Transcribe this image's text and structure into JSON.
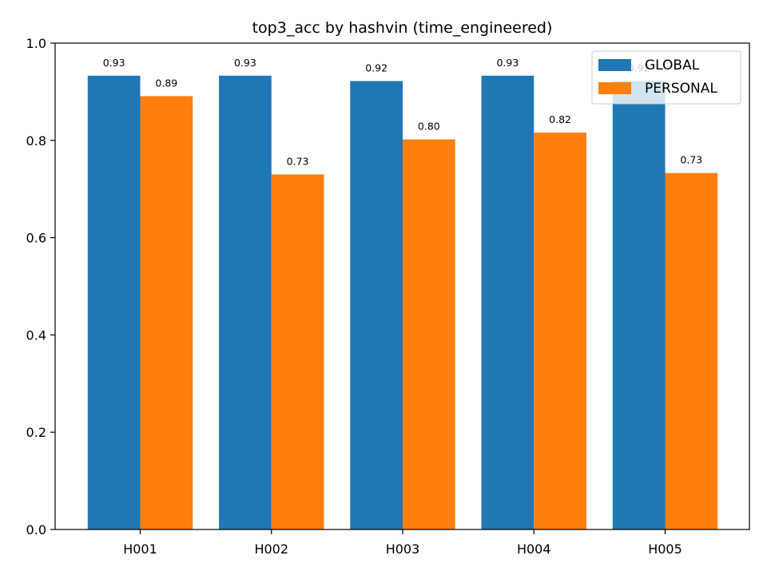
{
  "chart_data": {
    "type": "bar",
    "title": "top3_acc by hashvin (time_engineered)",
    "xlabel": "",
    "ylabel": "",
    "categories": [
      "H001",
      "H002",
      "H003",
      "H004",
      "H005"
    ],
    "series": [
      {
        "name": "GLOBAL",
        "color": "#1f77b4",
        "values": [
          0.933,
          0.933,
          0.922,
          0.933,
          0.922
        ],
        "labels": [
          "0.93",
          "0.93",
          "0.92",
          "0.93",
          "0.92"
        ]
      },
      {
        "name": "PERSONAL",
        "color": "#ff7f0e",
        "values": [
          0.891,
          0.73,
          0.802,
          0.816,
          0.733
        ],
        "labels": [
          "0.89",
          "0.73",
          "0.80",
          "0.82",
          "0.73"
        ]
      }
    ],
    "ylim": [
      0,
      1.0
    ],
    "yticks": [
      "0.0",
      "0.2",
      "0.4",
      "0.6",
      "0.8",
      "1.0"
    ],
    "grid": false,
    "legend_position": "top-right"
  }
}
